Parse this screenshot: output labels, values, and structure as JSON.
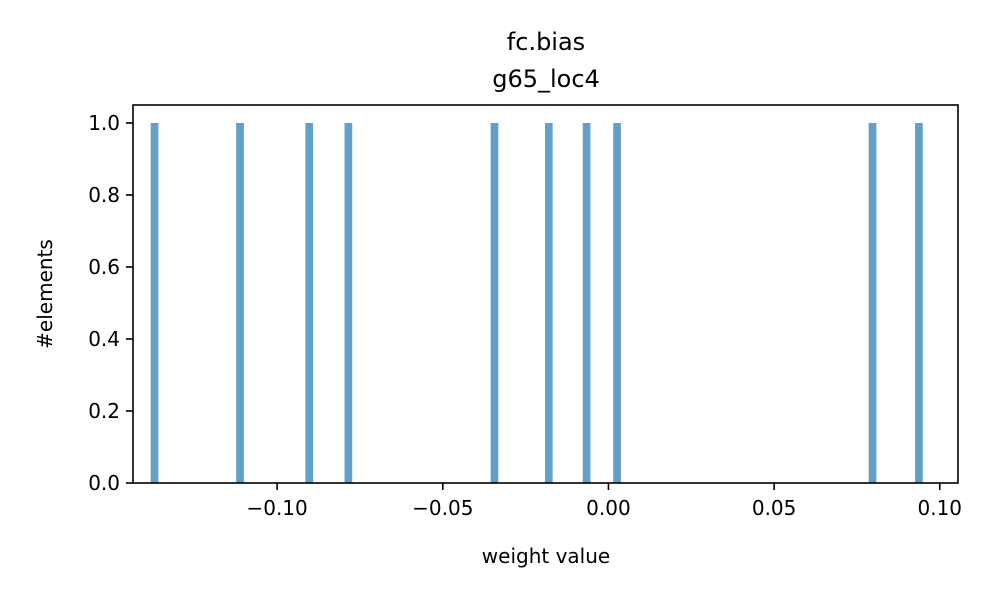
{
  "chart_data": {
    "type": "bar",
    "title": "fc.bias\ng65_loc4",
    "title_lines": [
      "fc.bias",
      "g65_loc4"
    ],
    "xlabel": "weight value",
    "ylabel": "#elements",
    "xlim": [
      -0.1435,
      0.1055
    ],
    "ylim": [
      0.0,
      1.05
    ],
    "x_ticks": [
      -0.1,
      -0.05,
      0.0,
      0.05,
      0.1
    ],
    "x_tick_labels": [
      "−0.10",
      "−0.05",
      "0.00",
      "0.05",
      "0.10"
    ],
    "y_ticks": [
      0.0,
      0.2,
      0.4,
      0.6,
      0.8,
      1.0
    ],
    "y_tick_labels": [
      "0.0",
      "0.2",
      "0.4",
      "0.6",
      "0.8",
      "1.0"
    ],
    "bin_width": 0.00232,
    "bars": [
      {
        "x": -0.137,
        "count": 1
      },
      {
        "x": -0.1112,
        "count": 1
      },
      {
        "x": -0.0903,
        "count": 1
      },
      {
        "x": -0.0785,
        "count": 1
      },
      {
        "x": -0.0344,
        "count": 1
      },
      {
        "x": -0.018,
        "count": 1
      },
      {
        "x": -0.0066,
        "count": 1
      },
      {
        "x": 0.0026,
        "count": 1
      },
      {
        "x": 0.0797,
        "count": 1
      },
      {
        "x": 0.0937,
        "count": 1
      }
    ],
    "bar_color": "#1f77b4",
    "bar_alpha": 0.7,
    "grid": false,
    "legend": "none"
  }
}
